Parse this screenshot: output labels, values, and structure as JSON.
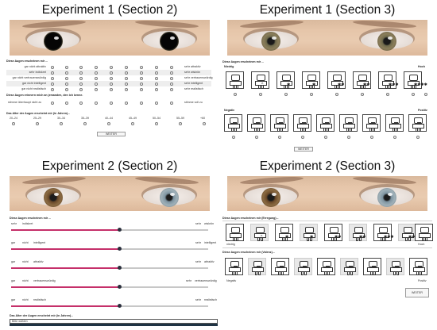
{
  "panels": {
    "p1": {
      "title": "Experiment 1 (Section 2)",
      "question": "Diese Augen erscheinen mir ...",
      "rows": [
        {
          "left": "gar nicht attraktiv",
          "right": "sehr attraktiv"
        },
        {
          "left": "sehr indiskret",
          "right": "sehr wiskrön"
        },
        {
          "left": "gar nicht vertrauenswürdig",
          "right": "sehr vertrauenswürdig"
        },
        {
          "left": "gar nicht intelligent",
          "right": "sehr intelligent"
        },
        {
          "left": "gar nicht realistisch",
          "right": "sehr realistisch"
        }
      ],
      "seen_question": "Diese Augen erinnern mich an jemanden, den ich kenne.",
      "seen_row": {
        "left": "stimme überhaupt nicht zu",
        "right": "stimme voll zu"
      },
      "age_question": "Das Alter der Augen erscheint mir (in Jahren)...",
      "age_labels": [
        "20–24",
        "25–29",
        "30–34",
        "35–39",
        "40–44",
        "45–49",
        "50–54",
        "55–59",
        "+60"
      ],
      "button": "WEITER"
    },
    "p2": {
      "title": "Experiment 1 (Section 3)",
      "question": "Diese Augen erscheinen mir ...",
      "row1_left": "Niedrig",
      "row1_right": "Hoch",
      "row1_glyphs": [
        "",
        "^",
        "✱",
        "✱",
        "✱✱",
        "✱✱",
        "✱✱✱",
        "✱✱✱✱"
      ],
      "row2_left": "Negativ",
      "row2_right": "Positiv",
      "button": "WEITER"
    },
    "p3": {
      "title": "Experiment 2 (Section 2)",
      "question": "Diese Augen erscheinen mir ...",
      "sliders": [
        {
          "left": "sehr",
          "left2": "indiskret",
          "right": "sehr",
          "right2": "wiskrön",
          "value": 0.55
        },
        {
          "left": "gar",
          "left2": "nicht",
          "left3": "intelligent",
          "right": "sehr",
          "right2": "intelligent",
          "value": 0.55
        },
        {
          "left": "gar",
          "left2": "nicht",
          "left3": "attraktiv",
          "right": "sehr",
          "right2": "attraktiv",
          "value": 0.55
        },
        {
          "left": "gar",
          "left2": "nicht",
          "left3": "vertrauenswürdig",
          "right": "sehr",
          "right2": "vertrauenswürdig",
          "value": 0.55
        },
        {
          "left": "gar",
          "left2": "nicht",
          "left3": "realistisch",
          "right": "sehr",
          "right2": "realistisch",
          "value": 0.55
        }
      ],
      "age_question": "Das Alter der Augen erscheint mir (in Jahren)...",
      "age_input": "Bitte  wählen"
    },
    "p4": {
      "title": "Experiment 2 (Section 3)",
      "question1": "Diese Augen erscheinen mir (Erregung)...",
      "row1_left": "niedrig",
      "row1_right": "Hoch",
      "row1_glyphs": [
        "",
        "^",
        "✱",
        "✱",
        "✱✱",
        "✱✱",
        "✱✱✱",
        "✱✱✱✱"
      ],
      "question2": "Diese Augen erscheinen mir (Valenz)...",
      "row2_left": "Negativ",
      "row2_right": "Positiv",
      "button": "WEITER"
    }
  },
  "colors": {
    "accent": "#c5306a",
    "thumb": "#2a2f3d"
  }
}
